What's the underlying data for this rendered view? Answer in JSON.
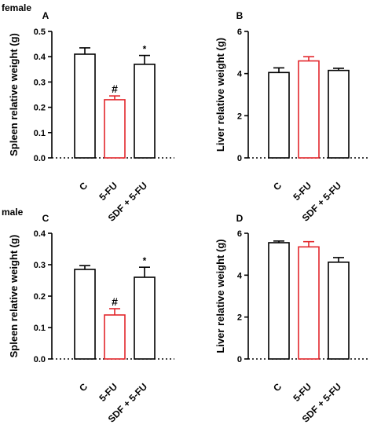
{
  "figure": {
    "group_labels": [
      "female",
      "male"
    ]
  },
  "colors": {
    "default_bar": "#000000",
    "highlight_bar": "#e3262b"
  },
  "chart_data": [
    {
      "id": "A",
      "panel_label": "A",
      "type": "bar",
      "ylabel": "Spleen relative weight (g)",
      "categories": [
        "C",
        "5-FU",
        "SDF + 5-FU"
      ],
      "values": [
        0.41,
        0.23,
        0.37
      ],
      "errors": [
        0.025,
        0.015,
        0.035
      ],
      "annotations": [
        "",
        "#",
        "*"
      ],
      "bar_colors": [
        "#000000",
        "#e3262b",
        "#000000"
      ],
      "ylim": [
        0,
        0.5
      ],
      "yticks": [
        0.0,
        0.1,
        0.2,
        0.3,
        0.4,
        0.5
      ],
      "ytick_labels": [
        "0.0",
        "0.1",
        "0.2",
        "0.3",
        "0.4",
        "0.5"
      ]
    },
    {
      "id": "B",
      "panel_label": "B",
      "type": "bar",
      "ylabel": "Liver relative weight (g)",
      "categories": [
        "C",
        "5-FU",
        "SDF + 5-FU"
      ],
      "values": [
        4.05,
        4.6,
        4.15
      ],
      "errors": [
        0.22,
        0.2,
        0.1
      ],
      "annotations": [
        "",
        "",
        ""
      ],
      "bar_colors": [
        "#000000",
        "#e3262b",
        "#000000"
      ],
      "ylim": [
        0,
        6
      ],
      "yticks": [
        0,
        2,
        4,
        6
      ],
      "ytick_labels": [
        "0",
        "2",
        "4",
        "6"
      ]
    },
    {
      "id": "C",
      "panel_label": "C",
      "type": "bar",
      "ylabel": "Spleen relative weight (g)",
      "categories": [
        "C",
        "5-FU",
        "SDF + 5-FU"
      ],
      "values": [
        0.285,
        0.14,
        0.26
      ],
      "errors": [
        0.012,
        0.02,
        0.032
      ],
      "annotations": [
        "",
        "#",
        "*"
      ],
      "bar_colors": [
        "#000000",
        "#e3262b",
        "#000000"
      ],
      "ylim": [
        0,
        0.4
      ],
      "yticks": [
        0.0,
        0.1,
        0.2,
        0.3,
        0.4
      ],
      "ytick_labels": [
        "0.0",
        "0.1",
        "0.2",
        "0.3",
        "0.4"
      ]
    },
    {
      "id": "D",
      "panel_label": "D",
      "type": "bar",
      "ylabel": "Liver relative weight (g)",
      "categories": [
        "C",
        "5-FU",
        "SDF + 5-FU"
      ],
      "values": [
        5.55,
        5.35,
        4.62
      ],
      "errors": [
        0.08,
        0.25,
        0.22
      ],
      "annotations": [
        "",
        "",
        ""
      ],
      "bar_colors": [
        "#000000",
        "#e3262b",
        "#000000"
      ],
      "ylim": [
        0,
        6
      ],
      "yticks": [
        0,
        2,
        4,
        6
      ],
      "ytick_labels": [
        "0",
        "2",
        "4",
        "6"
      ]
    }
  ]
}
